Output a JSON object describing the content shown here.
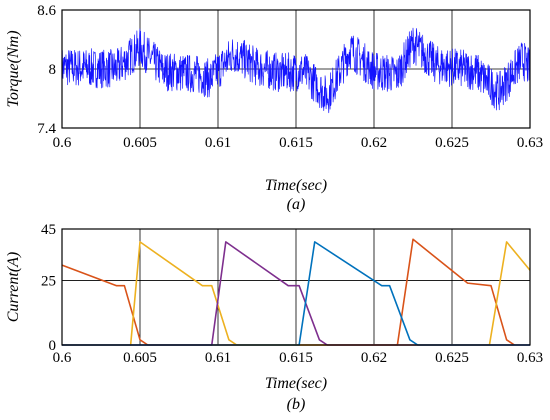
{
  "chart_data": [
    {
      "id": "a",
      "type": "line",
      "caption": "(a)",
      "xlabel": "Time(sec)",
      "ylabel": "Torque(Nm)",
      "xlim": [
        0.6,
        0.63
      ],
      "ylim": [
        7.4,
        8.6
      ],
      "xticks": [
        0.6,
        0.605,
        0.61,
        0.615,
        0.62,
        0.625,
        0.63
      ],
      "xtick_labels": [
        "0.6",
        "0.605",
        "0.61",
        "0.615",
        "0.62",
        "0.625",
        "0.63"
      ],
      "yticks": [
        7.4,
        8.0,
        8.6
      ],
      "ytick_labels": [
        "7.4",
        "8",
        "8.6"
      ],
      "grid": true,
      "series": [
        {
          "color": "#1414ff",
          "mean": 8.0,
          "band_half_width": 0.2,
          "x": [
            0.6,
            0.6035,
            0.605,
            0.6065,
            0.6085,
            0.6095,
            0.611,
            0.6125,
            0.614,
            0.6155,
            0.617,
            0.6185,
            0.62,
            0.6215,
            0.6225,
            0.624,
            0.6265,
            0.628,
            0.6295,
            0.63
          ],
          "y": [
            8.02,
            8.0,
            8.22,
            7.98,
            7.95,
            7.9,
            8.16,
            8.02,
            7.96,
            7.98,
            7.72,
            8.2,
            7.98,
            7.94,
            8.26,
            8.04,
            7.98,
            7.76,
            8.1,
            8.0
          ]
        }
      ]
    },
    {
      "id": "b",
      "type": "line",
      "caption": "(b)",
      "xlabel": "Time(sec)",
      "ylabel": "Current(A)",
      "xlim": [
        0.6,
        0.63
      ],
      "ylim": [
        0,
        45
      ],
      "xticks": [
        0.6,
        0.605,
        0.61,
        0.615,
        0.62,
        0.625,
        0.63
      ],
      "xtick_labels": [
        "0.6",
        "0.605",
        "0.61",
        "0.615",
        "0.62",
        "0.625",
        "0.63"
      ],
      "yticks": [
        0,
        25,
        45
      ],
      "ytick_labels": [
        "0",
        "25",
        "45"
      ],
      "grid": true,
      "series": [
        {
          "color": "#d95319",
          "x": [
            0.6,
            0.6035,
            0.604,
            0.605,
            0.6055,
            0.6215,
            0.6225,
            0.626,
            0.6275,
            0.6285,
            0.629
          ],
          "y": [
            31,
            23,
            23,
            2,
            0,
            0,
            41,
            24,
            23,
            2,
            0
          ]
        },
        {
          "color": "#edb120",
          "x": [
            0.6,
            0.6044,
            0.605,
            0.609,
            0.6096,
            0.6107,
            0.6112,
            0.6274,
            0.6285,
            0.63
          ],
          "y": [
            0,
            0,
            40,
            23,
            23,
            2,
            0,
            0,
            40,
            29
          ]
        },
        {
          "color": "#7e2f8e",
          "x": [
            0.6,
            0.6096,
            0.6105,
            0.6145,
            0.6152,
            0.6165,
            0.617,
            0.63
          ],
          "y": [
            0,
            0,
            40,
            23,
            23,
            2,
            0,
            0
          ]
        },
        {
          "color": "#0072bd",
          "x": [
            0.6,
            0.6152,
            0.6162,
            0.6205,
            0.621,
            0.6223,
            0.6228,
            0.63
          ],
          "y": [
            0,
            0,
            40,
            23,
            23,
            2,
            0,
            0
          ]
        }
      ]
    }
  ]
}
